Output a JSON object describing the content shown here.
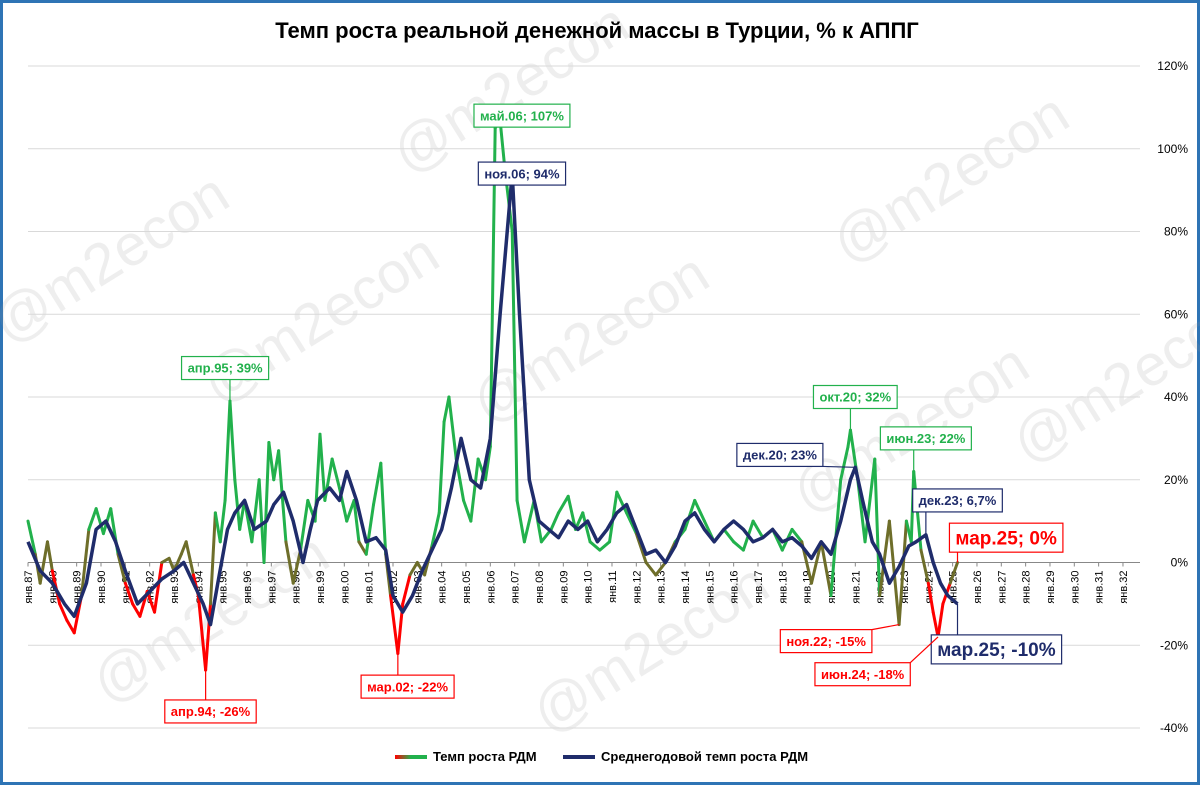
{
  "watermark": "@m2econ",
  "chart_data": {
    "type": "line",
    "title": "Темп роста реальной денежной массы в Турции, % к АППГ",
    "y_ticks": [
      "120%",
      "100%",
      "80%",
      "60%",
      "40%",
      "20%",
      "0%",
      "-20%",
      "-40%"
    ],
    "y_tick_values": [
      120,
      100,
      80,
      60,
      40,
      20,
      0,
      -20,
      -40
    ],
    "ylim": [
      -40,
      120
    ],
    "x_ticks": [
      "янв.87",
      "янв.88",
      "янв.89",
      "янв.90",
      "янв.91",
      "янв.92",
      "янв.93",
      "янв.94",
      "янв.95",
      "янв.96",
      "янв.97",
      "янв.98",
      "янв.99",
      "янв.00",
      "янв.01",
      "янв.02",
      "янв.03",
      "янв.04",
      "янв.05",
      "янв.06",
      "янв.07",
      "янв.08",
      "янв.09",
      "янв.10",
      "янв.11",
      "янв.12",
      "янв.13",
      "янв.14",
      "янв.15",
      "янв.16",
      "янв.17",
      "янв.18",
      "янв.19",
      "янв.20",
      "янв.21",
      "янв.22",
      "янв.23",
      "янв.24",
      "янв.25",
      "янв.26",
      "янв.27",
      "янв.28",
      "янв.29",
      "янв.30",
      "янв.31",
      "янв.32"
    ],
    "x_tick_years": [
      1987,
      1988,
      1989,
      1990,
      1991,
      1992,
      1993,
      1994,
      1995,
      1996,
      1997,
      1998,
      1999,
      2000,
      2001,
      2002,
      2003,
      2004,
      2005,
      2006,
      2007,
      2008,
      2009,
      2010,
      2011,
      2012,
      2013,
      2014,
      2015,
      2016,
      2017,
      2018,
      2019,
      2020,
      2021,
      2022,
      2023,
      2024,
      2025,
      2026,
      2027,
      2028,
      2029,
      2030,
      2031,
      2032
    ],
    "xlim_years": [
      1987.0,
      2032.7
    ],
    "grid": true,
    "legend_position": "bottom",
    "series": [
      {
        "name": "Темп роста РДМ",
        "color": "#22b14c",
        "negative_color": "#ff0000",
        "points": [
          [
            1987.0,
            10
          ],
          [
            1987.3,
            2
          ],
          [
            1987.5,
            -5
          ],
          [
            1987.8,
            5
          ],
          [
            1988.0,
            -2
          ],
          [
            1988.3,
            -10
          ],
          [
            1988.6,
            -14
          ],
          [
            1988.9,
            -17
          ],
          [
            1989.2,
            -8
          ],
          [
            1989.5,
            8
          ],
          [
            1989.8,
            13
          ],
          [
            1990.1,
            7
          ],
          [
            1990.4,
            13
          ],
          [
            1990.7,
            2
          ],
          [
            1991.0,
            -5
          ],
          [
            1991.3,
            -10
          ],
          [
            1991.6,
            -13
          ],
          [
            1991.9,
            -7
          ],
          [
            1992.2,
            -12
          ],
          [
            1992.5,
            0
          ],
          [
            1992.8,
            1
          ],
          [
            1993.0,
            -2
          ],
          [
            1993.3,
            2
          ],
          [
            1993.5,
            5
          ],
          [
            1993.8,
            -3
          ],
          [
            1994.0,
            -8
          ],
          [
            1994.3,
            -26
          ],
          [
            1994.5,
            -10
          ],
          [
            1994.7,
            12
          ],
          [
            1994.9,
            5
          ],
          [
            1995.1,
            15
          ],
          [
            1995.3,
            39
          ],
          [
            1995.5,
            20
          ],
          [
            1995.7,
            8
          ],
          [
            1995.9,
            15
          ],
          [
            1996.2,
            5
          ],
          [
            1996.5,
            20
          ],
          [
            1996.7,
            0
          ],
          [
            1996.9,
            29
          ],
          [
            1997.1,
            20
          ],
          [
            1997.3,
            27
          ],
          [
            1997.6,
            5
          ],
          [
            1997.9,
            -5
          ],
          [
            1998.2,
            3
          ],
          [
            1998.5,
            15
          ],
          [
            1998.8,
            10
          ],
          [
            1999.0,
            31
          ],
          [
            1999.2,
            15
          ],
          [
            1999.5,
            25
          ],
          [
            1999.8,
            18
          ],
          [
            2000.1,
            10
          ],
          [
            2000.4,
            15
          ],
          [
            2000.6,
            5
          ],
          [
            2000.9,
            2
          ],
          [
            2001.2,
            14
          ],
          [
            2001.5,
            24
          ],
          [
            2001.7,
            2
          ],
          [
            2001.9,
            -8
          ],
          [
            2002.2,
            -22
          ],
          [
            2002.4,
            -10
          ],
          [
            2002.7,
            -3
          ],
          [
            2003.0,
            0
          ],
          [
            2003.3,
            -3
          ],
          [
            2003.6,
            4
          ],
          [
            2003.9,
            12
          ],
          [
            2004.1,
            34
          ],
          [
            2004.3,
            40
          ],
          [
            2004.6,
            25
          ],
          [
            2004.9,
            15
          ],
          [
            2005.2,
            10
          ],
          [
            2005.5,
            25
          ],
          [
            2005.8,
            20
          ],
          [
            2006.0,
            28
          ],
          [
            2006.2,
            105
          ],
          [
            2006.4,
            107
          ],
          [
            2006.6,
            95
          ],
          [
            2006.9,
            80
          ],
          [
            2007.1,
            15
          ],
          [
            2007.4,
            5
          ],
          [
            2007.8,
            15
          ],
          [
            2008.1,
            5
          ],
          [
            2008.5,
            8
          ],
          [
            2008.8,
            12
          ],
          [
            2009.2,
            16
          ],
          [
            2009.5,
            8
          ],
          [
            2009.8,
            12
          ],
          [
            2010.1,
            5
          ],
          [
            2010.5,
            3
          ],
          [
            2010.9,
            5
          ],
          [
            2011.2,
            17
          ],
          [
            2011.6,
            12
          ],
          [
            2012.0,
            7
          ],
          [
            2012.4,
            0
          ],
          [
            2012.8,
            -3
          ],
          [
            2013.2,
            0
          ],
          [
            2013.6,
            5
          ],
          [
            2014.0,
            8
          ],
          [
            2014.4,
            15
          ],
          [
            2014.8,
            10
          ],
          [
            2015.2,
            5
          ],
          [
            2015.6,
            8
          ],
          [
            2016.0,
            5
          ],
          [
            2016.4,
            3
          ],
          [
            2016.8,
            10
          ],
          [
            2017.2,
            6
          ],
          [
            2017.6,
            8
          ],
          [
            2018.0,
            3
          ],
          [
            2018.4,
            8
          ],
          [
            2018.8,
            5
          ],
          [
            2019.2,
            -5
          ],
          [
            2019.6,
            5
          ],
          [
            2020.0,
            -8
          ],
          [
            2020.4,
            20
          ],
          [
            2020.7,
            28
          ],
          [
            2020.8,
            32
          ],
          [
            2021.1,
            20
          ],
          [
            2021.4,
            5
          ],
          [
            2021.8,
            25
          ],
          [
            2022.0,
            -8
          ],
          [
            2022.4,
            10
          ],
          [
            2022.8,
            -15
          ],
          [
            2023.1,
            10
          ],
          [
            2023.3,
            5
          ],
          [
            2023.4,
            22
          ],
          [
            2023.7,
            3
          ],
          [
            2024.0,
            -5
          ],
          [
            2024.2,
            -12
          ],
          [
            2024.4,
            -18
          ],
          [
            2024.6,
            -10
          ],
          [
            2024.9,
            -5
          ],
          [
            2025.2,
            0
          ]
        ]
      },
      {
        "name": "Среднегодовой темп роста РДМ",
        "color": "#1f2c6b",
        "points": [
          [
            1987.0,
            5
          ],
          [
            1987.5,
            -2
          ],
          [
            1988.0,
            -5
          ],
          [
            1988.5,
            -10
          ],
          [
            1988.9,
            -13
          ],
          [
            1989.4,
            -5
          ],
          [
            1989.8,
            8
          ],
          [
            1990.2,
            10
          ],
          [
            1990.6,
            5
          ],
          [
            1991.0,
            -2
          ],
          [
            1991.5,
            -10
          ],
          [
            1992.0,
            -7
          ],
          [
            1992.5,
            -4
          ],
          [
            1993.0,
            -2
          ],
          [
            1993.4,
            0
          ],
          [
            1993.8,
            -5
          ],
          [
            1994.2,
            -10
          ],
          [
            1994.5,
            -15
          ],
          [
            1994.8,
            -5
          ],
          [
            1995.2,
            8
          ],
          [
            1995.5,
            12
          ],
          [
            1995.9,
            15
          ],
          [
            1996.3,
            8
          ],
          [
            1996.8,
            10
          ],
          [
            1997.1,
            14
          ],
          [
            1997.5,
            17
          ],
          [
            1997.9,
            10
          ],
          [
            1998.3,
            0
          ],
          [
            1998.6,
            8
          ],
          [
            1998.9,
            15
          ],
          [
            1999.4,
            18
          ],
          [
            1999.8,
            15
          ],
          [
            2000.1,
            22
          ],
          [
            2000.5,
            15
          ],
          [
            2000.9,
            5
          ],
          [
            2001.3,
            6
          ],
          [
            2001.7,
            3
          ],
          [
            2002.0,
            -8
          ],
          [
            2002.4,
            -12
          ],
          [
            2002.8,
            -8
          ],
          [
            2003.2,
            -2
          ],
          [
            2003.6,
            3
          ],
          [
            2004.0,
            8
          ],
          [
            2004.4,
            18
          ],
          [
            2004.8,
            30
          ],
          [
            2005.2,
            20
          ],
          [
            2005.6,
            18
          ],
          [
            2006.0,
            30
          ],
          [
            2006.4,
            60
          ],
          [
            2006.9,
            94
          ],
          [
            2007.2,
            60
          ],
          [
            2007.6,
            20
          ],
          [
            2008.0,
            10
          ],
          [
            2008.4,
            8
          ],
          [
            2008.8,
            6
          ],
          [
            2009.2,
            10
          ],
          [
            2009.6,
            8
          ],
          [
            2010.0,
            10
          ],
          [
            2010.4,
            5
          ],
          [
            2010.8,
            8
          ],
          [
            2011.2,
            12
          ],
          [
            2011.6,
            14
          ],
          [
            2012.0,
            8
          ],
          [
            2012.4,
            2
          ],
          [
            2012.8,
            3
          ],
          [
            2013.2,
            0
          ],
          [
            2013.6,
            4
          ],
          [
            2014.0,
            10
          ],
          [
            2014.4,
            12
          ],
          [
            2014.8,
            8
          ],
          [
            2015.2,
            5
          ],
          [
            2015.6,
            8
          ],
          [
            2016.0,
            10
          ],
          [
            2016.4,
            8
          ],
          [
            2016.8,
            5
          ],
          [
            2017.2,
            6
          ],
          [
            2017.6,
            8
          ],
          [
            2018.0,
            5
          ],
          [
            2018.4,
            6
          ],
          [
            2018.8,
            4
          ],
          [
            2019.2,
            1
          ],
          [
            2019.6,
            5
          ],
          [
            2020.0,
            2
          ],
          [
            2020.4,
            10
          ],
          [
            2020.8,
            20
          ],
          [
            2021.0,
            23
          ],
          [
            2021.3,
            15
          ],
          [
            2021.7,
            5
          ],
          [
            2022.0,
            2
          ],
          [
            2022.4,
            -5
          ],
          [
            2022.8,
            -1
          ],
          [
            2023.2,
            4
          ],
          [
            2023.5,
            5
          ],
          [
            2023.9,
            6.7
          ],
          [
            2024.2,
            0
          ],
          [
            2024.5,
            -5
          ],
          [
            2024.8,
            -8
          ],
          [
            2025.2,
            -10
          ]
        ]
      }
    ],
    "annotations": [
      {
        "text": "май.06; 107%",
        "x": 2006.4,
        "y": 107,
        "color": "#22b14c",
        "box_x": 2007.3,
        "box_y": 108,
        "big": false
      },
      {
        "text": "ноя.06; 94%",
        "x": 2006.9,
        "y": 94,
        "color": "#1f2c6b",
        "box_x": 2007.3,
        "box_y": 94,
        "big": false
      },
      {
        "text": "апр.95; 39%",
        "x": 1995.3,
        "y": 39,
        "color": "#22b14c",
        "box_x": 1995.1,
        "box_y": 47,
        "big": false
      },
      {
        "text": "окт.20; 32%",
        "x": 2020.8,
        "y": 32,
        "color": "#22b14c",
        "box_x": 2021.0,
        "box_y": 40,
        "big": false
      },
      {
        "text": "июн.23; 22%",
        "x": 2023.4,
        "y": 22,
        "color": "#22b14c",
        "box_x": 2023.9,
        "box_y": 30,
        "big": false
      },
      {
        "text": "дек.20; 23%",
        "x": 2021.0,
        "y": 23,
        "color": "#1f2c6b",
        "box_x": 2017.9,
        "box_y": 26,
        "big": false
      },
      {
        "text": "дек.23; 6,7%",
        "x": 2023.9,
        "y": 6.7,
        "color": "#1f2c6b",
        "box_x": 2025.2,
        "box_y": 15,
        "big": false
      },
      {
        "text": "мар.25; 0%",
        "x": 2025.2,
        "y": 0,
        "color": "#ff0000",
        "box_x": 2027.2,
        "box_y": 6,
        "big": true
      },
      {
        "text": "мар.25; -10%",
        "x": 2025.2,
        "y": -10,
        "color": "#1f2c6b",
        "box_x": 2026.8,
        "box_y": -21,
        "big": true
      },
      {
        "text": "ноя.22; -15%",
        "x": 2022.8,
        "y": -15,
        "color": "#ff0000",
        "box_x": 2019.8,
        "box_y": -19,
        "big": false
      },
      {
        "text": "июн.24; -18%",
        "x": 2024.4,
        "y": -18,
        "color": "#ff0000",
        "box_x": 2021.3,
        "box_y": -27,
        "big": false
      },
      {
        "text": "мар.02; -22%",
        "x": 2002.2,
        "y": -22,
        "color": "#ff0000",
        "box_x": 2002.6,
        "box_y": -30,
        "big": false
      },
      {
        "text": "апр.94; -26%",
        "x": 1994.3,
        "y": -26,
        "color": "#ff0000",
        "box_x": 1994.5,
        "box_y": -36,
        "big": false
      }
    ]
  }
}
